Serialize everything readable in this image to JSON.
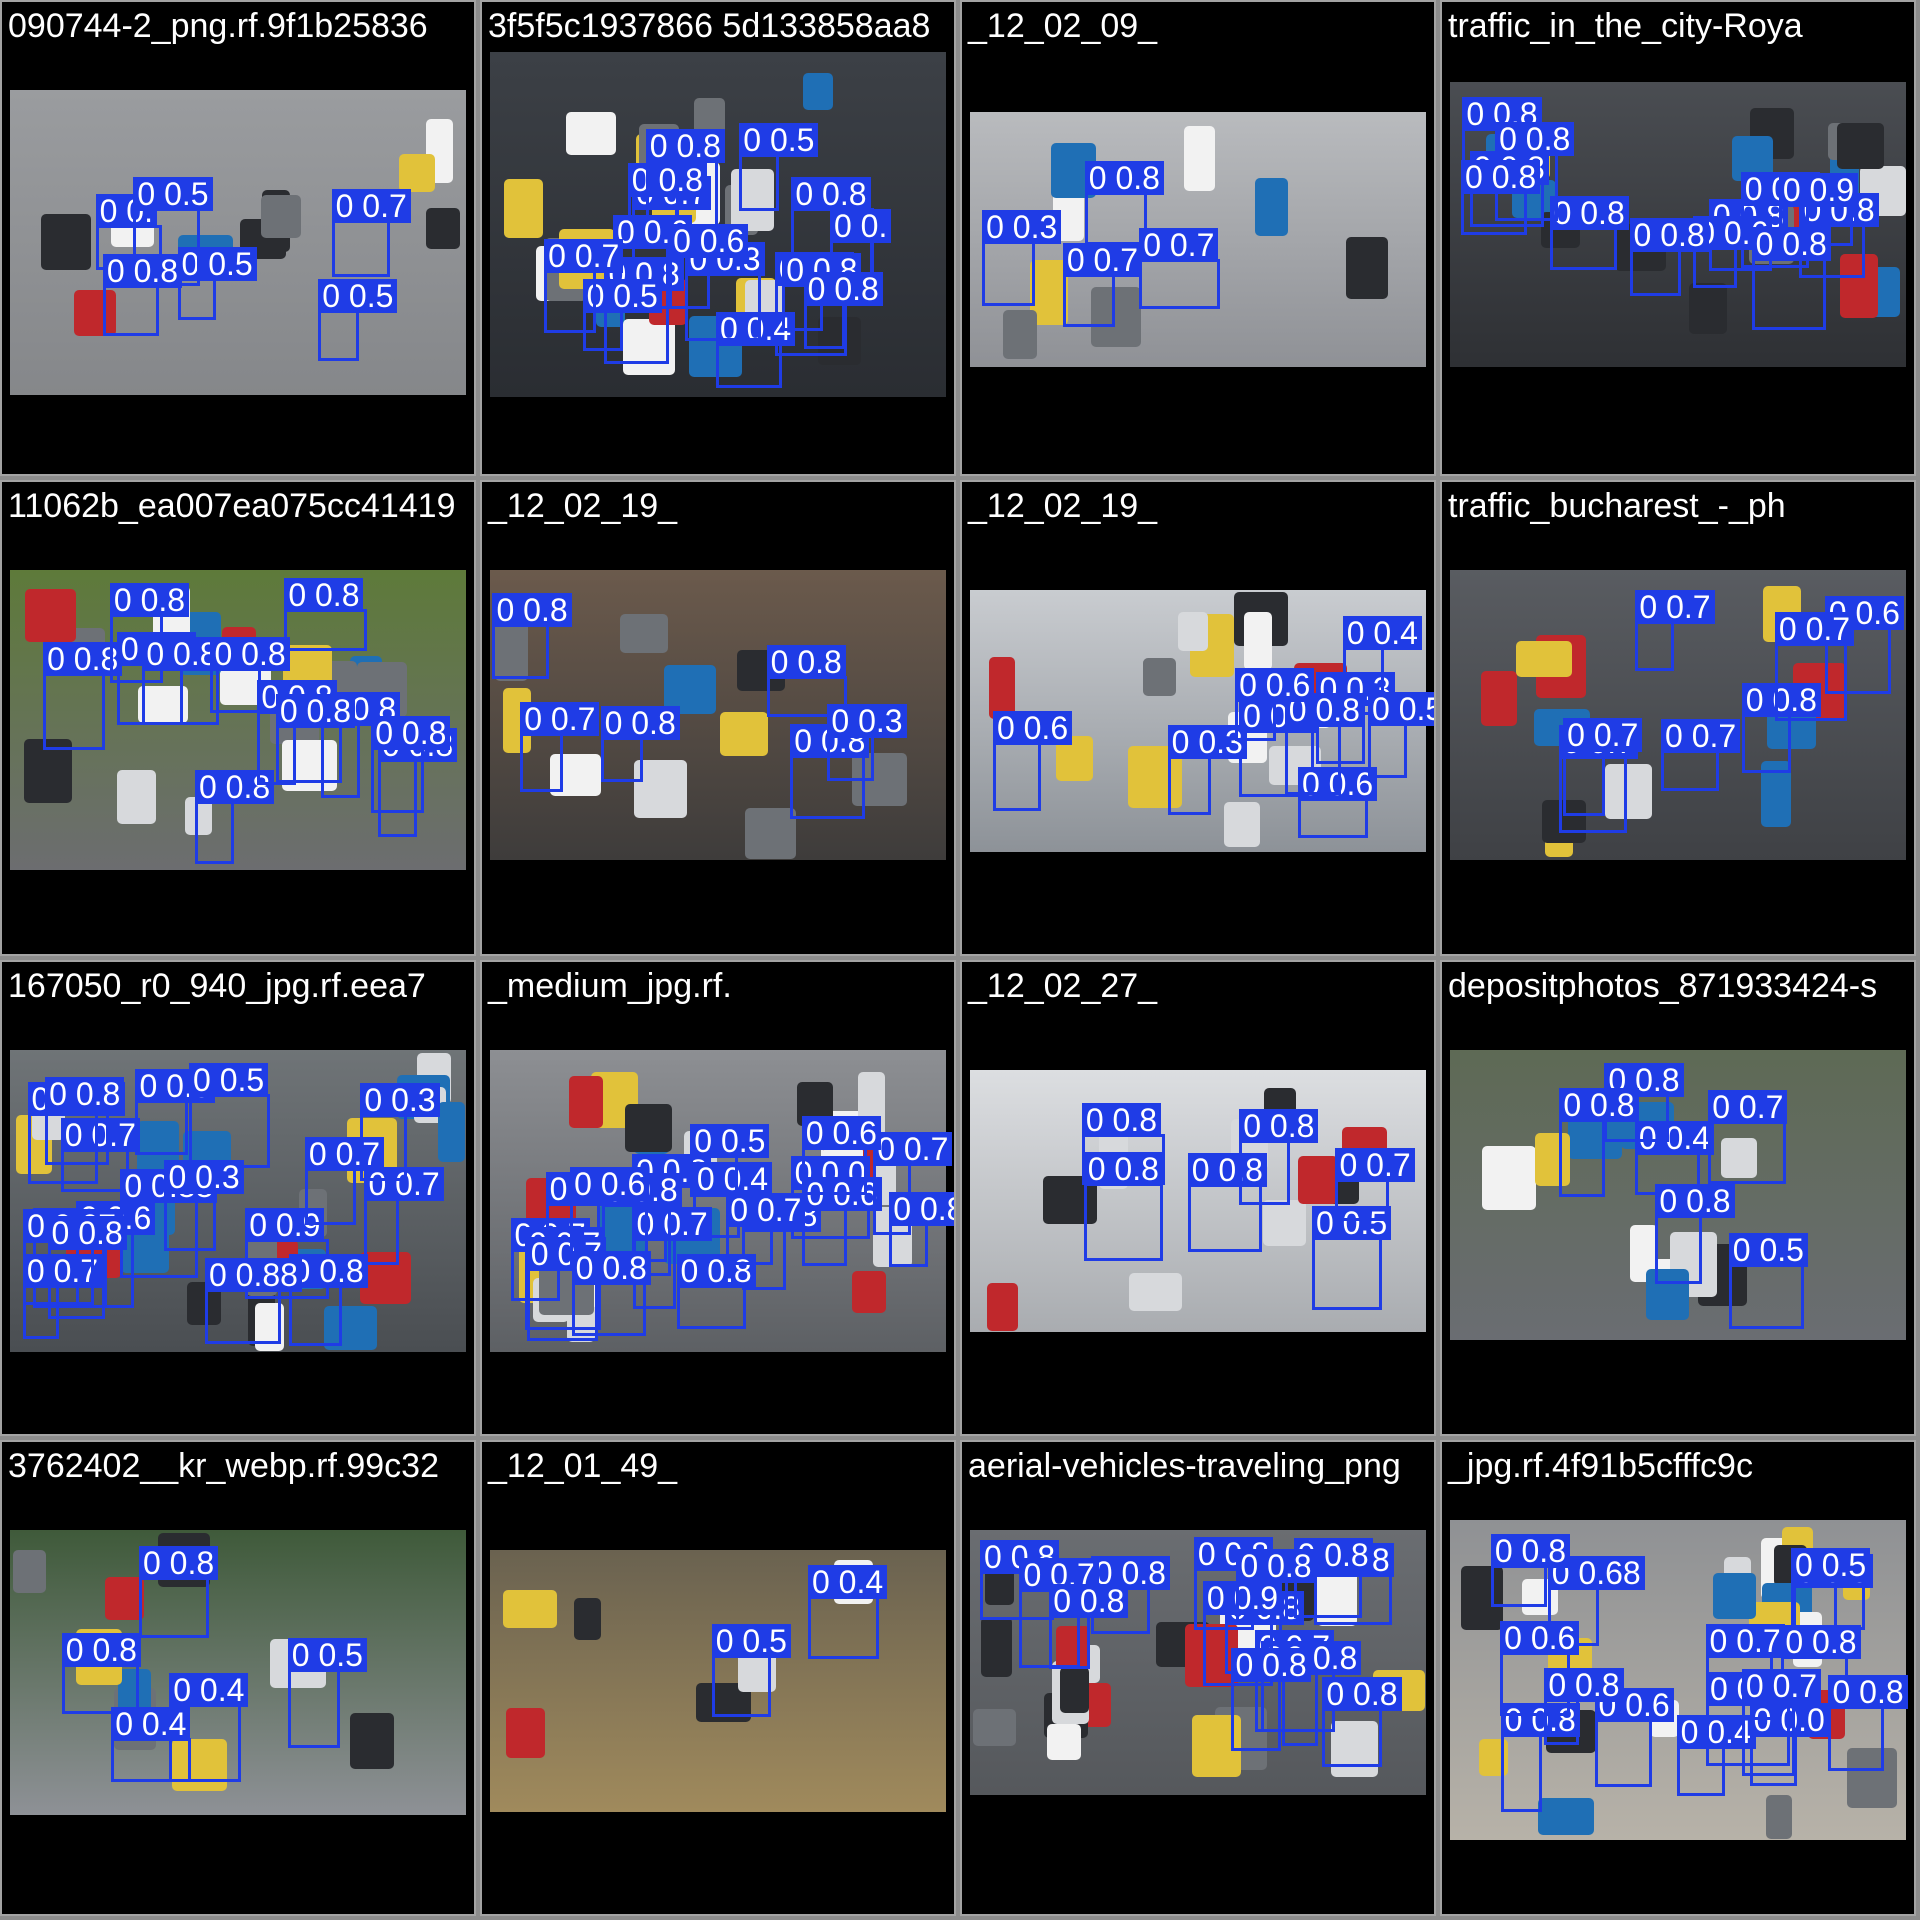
{
  "colors": {
    "box": "#1f3ce6",
    "label_text": "#ffffff",
    "tile_bg": "#000000",
    "frame": "#a3a3a3",
    "canvas": "#8c8c8c"
  },
  "tiles": [
    {
      "title": "090744-2_png.rf.9f1b25836",
      "bg": [
        "#9a9c9f",
        "#85878a"
      ],
      "labels": [
        "0 0.",
        "0 0.5",
        "0 0.5",
        "0 0.7",
        "0 0.8",
        "0 0.5"
      ]
    },
    {
      "title": "3f5f5c1937866 5d133858aa8",
      "bg": [
        "#3c4046",
        "#2a2d32"
      ],
      "labels": [
        "0 0.7",
        "0 0.8",
        "0 0.",
        "0 0.7",
        "0 0.8",
        "0 0.4",
        "0 0.8",
        "0 0.8",
        "0 0.3",
        "0 0.8",
        "0 0.8",
        "0 0.6",
        "0 0.5",
        "0 0.7",
        "0 0.5",
        "0 0.6"
      ]
    },
    {
      "title": "_12_02_09_",
      "bg": [
        "#b9bbbe",
        "#8f9196"
      ],
      "labels": [
        "0 0.8",
        "0 0.3",
        "0 0.7",
        "0 0.7"
      ]
    },
    {
      "title": "traffic_in_the_city-Roya",
      "bg": [
        "#4a4d52",
        "#2e3034"
      ],
      "labels": [
        "0 0.8",
        "0 0.8",
        "0 0.8",
        "0 0.8",
        "0 0.8",
        "0 0.9",
        "0 0.8",
        "0 0.9",
        "0 0.8",
        "0 0.6",
        "0 0.8",
        "0 0.8"
      ]
    },
    {
      "title": "11062b_ea007ea075cc41419",
      "bg": [
        "#5e7a3a",
        "#6c6d70"
      ],
      "labels": [
        "0 0.8",
        "0 0.8",
        "0 0.8",
        "0 0.8",
        "0 0.8",
        "0 0.8",
        "0 0.8",
        "0 0.8",
        "0 0.8",
        "0 0.8",
        "0 0.8",
        "0 0.8"
      ]
    },
    {
      "title": "_12_02_19_",
      "bg": [
        "#6b5a4c",
        "#3e3c3b"
      ],
      "labels": [
        "0 0.7",
        "0 0.8",
        "0 0.8",
        "0 0.8",
        "0 0.8",
        "0 0.3"
      ]
    },
    {
      "title": "_12_02_19_",
      "bg": [
        "#c9ccd0",
        "#8d9298"
      ],
      "labels": [
        "0 0.3",
        "0 0.4",
        "0 0.3",
        "0 0.4",
        "0 0.6",
        "0 0.8",
        "0 0.6",
        "0 0.6",
        "0 0.5"
      ]
    },
    {
      "title": "traffic_bucharest_-_ph",
      "bg": [
        "#595c61",
        "#3f4145"
      ],
      "labels": [
        "0 0.7",
        "0 0.7",
        "0 0.7",
        "0 0.6",
        "0 0.8",
        "0 0.7",
        "0 0.7"
      ]
    },
    {
      "title": "167050_r0_940_jpg.rf.eea7",
      "bg": [
        "#6f7477",
        "#4a4e52"
      ],
      "labels": [
        "0 0.9",
        "0 0.7",
        "0 0.8",
        "0 0.5",
        "0 0.67",
        "0 0.7",
        "0 0.6",
        "0 0.7",
        "0 0.67",
        "0 0.7",
        "0 0.7",
        "0 0.88",
        "0 0.8",
        "0 0.3",
        "0 0.88",
        "0 0.5",
        "0 0.8",
        "0 0.3"
      ]
    },
    {
      "title": "_medium_jpg.rf.",
      "bg": [
        "#8d8f93",
        "#5d6064"
      ],
      "labels": [
        "0 0.8",
        "0 0.0",
        "0 0.7",
        "0 0.8",
        "0 0.7",
        "0 0.8",
        "0 0.6",
        "0 0.7",
        "0 0.4",
        "0 0.7",
        "0 0.5",
        "0 0.7",
        "0 0.8",
        "0 0.8",
        "0 0.6",
        "0 0.8",
        "0 0.6",
        "0 0.7",
        "0 0.8"
      ]
    },
    {
      "title": "_12_02_27_",
      "bg": [
        "#dcdee1",
        "#a9acb0"
      ],
      "labels": [
        "0 0.5",
        "0 0.8",
        "0 0.8",
        "0 0.8",
        "0 0.8",
        "0 0.7"
      ]
    },
    {
      "title": "depositphotos_871933424-s",
      "bg": [
        "#5e6a55",
        "#6a6d72"
      ],
      "labels": [
        "0 0.4",
        "0 0.7",
        "0 0.8",
        "0 0.8",
        "0 0.8",
        "0 0.5"
      ]
    },
    {
      "title": "3762402__kr_webp.rf.99c32",
      "bg": [
        "#3f5a3a",
        "#8e9196"
      ],
      "labels": [
        "0 0.5",
        "0 0.8",
        "0 0.4",
        "0 0.8",
        "0 0.4"
      ]
    },
    {
      "title": "_12_01_49_",
      "bg": [
        "#6a6250",
        "#a08a5c"
      ],
      "labels": [
        "0 0.4",
        "0 0.5"
      ]
    },
    {
      "title": "aerial-vehicles-traveling_png",
      "bg": [
        "#6a6d71",
        "#55585c"
      ],
      "labels": [
        "0 0.7",
        "0 0.8",
        "0 0.8",
        "0 0.8",
        "0 0.8",
        "0 0.9",
        "0 0.8",
        "0 0.8",
        "0 0.7",
        "0 0.8",
        "0 0.8",
        "0 0.8",
        "0 0.8",
        "0 0.8",
        "0 0.8"
      ]
    },
    {
      "title": "_jpg.rf.4f91b5cfffc9c",
      "bg": [
        "#8f9194",
        "#b7b2a8"
      ],
      "labels": [
        "0 0.6",
        "0 0.4",
        "0 0.0",
        "0 0.68",
        "0 0.8",
        "0 0.7",
        "0 0.5",
        "0 0.5",
        "0 0.8",
        "0 0.8",
        "0 0.7",
        "0 0.7",
        "0 0.8",
        "0 0.6",
        "0 0.8"
      ]
    }
  ]
}
